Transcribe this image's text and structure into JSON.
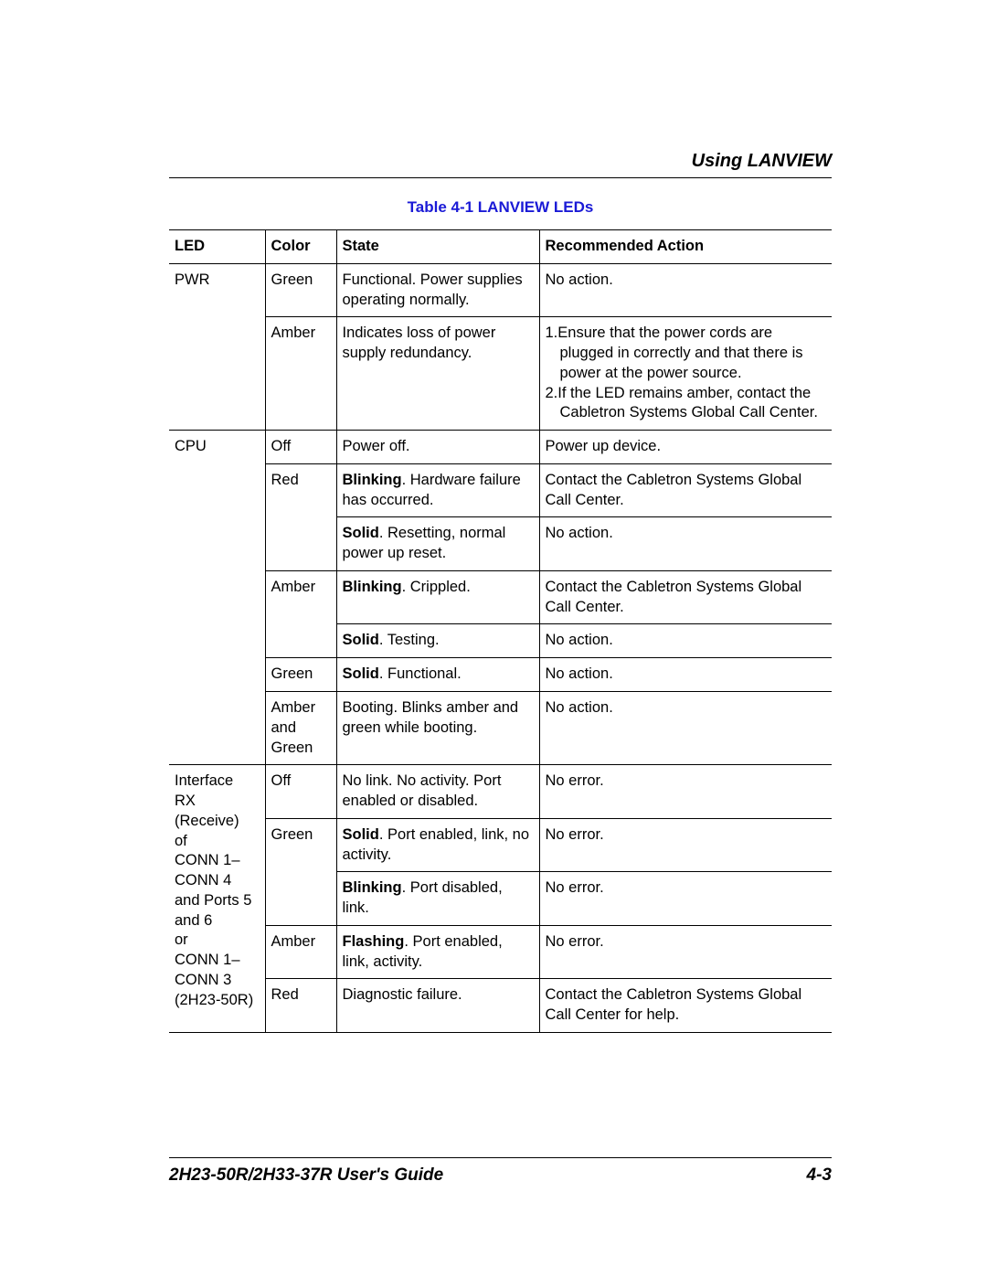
{
  "header": {
    "section_title": "Using LANVIEW"
  },
  "table": {
    "caption": "Table 4-1    LANVIEW LEDs",
    "columns": [
      "LED",
      "Color",
      "State",
      "Recommended Action"
    ],
    "rows": {
      "pwr": {
        "led": "PWR",
        "r1": {
          "color": "Green",
          "state": "Functional. Power supplies operating normally.",
          "action": "No action."
        },
        "r2": {
          "color": "Amber",
          "state": "Indicates loss of power supply redundancy.",
          "action1_num": "1.",
          "action1": "Ensure that the power cords are plugged in correctly and that there is power at the power source.",
          "action2_num": "2.",
          "action2": "If the LED remains amber, contact the Cabletron Systems Global Call Center."
        }
      },
      "cpu": {
        "led": "CPU",
        "r1": {
          "color": "Off",
          "state": "Power off.",
          "action": "Power up device."
        },
        "r2": {
          "color": "Red",
          "state_bold": "Blinking",
          "state_rest": ". Hardware failure has occurred.",
          "action": "Contact the Cabletron Systems Global Call Center."
        },
        "r3": {
          "state_bold": "Solid",
          "state_rest": ". Resetting, normal power up reset.",
          "action": "No action."
        },
        "r4": {
          "color": "Amber",
          "state_bold": "Blinking",
          "state_rest": ". Crippled.",
          "action": "Contact the Cabletron Systems Global Call Center."
        },
        "r5": {
          "state_bold": "Solid",
          "state_rest": ". Testing.",
          "action": "No action."
        },
        "r6": {
          "color": "Green",
          "state_bold": "Solid",
          "state_rest": ". Functional.",
          "action": "No action."
        },
        "r7": {
          "color": "Amber and Green",
          "state": "Booting. Blinks amber and green while booting.",
          "action": "No action."
        }
      },
      "rx": {
        "led": "Interface RX (Receive) of CONN 1– CONN 4 and Ports 5 and 6\nor\nCONN 1– CONN 3 (2H23-50R)",
        "led_l1": "Interface",
        "led_l2": "RX",
        "led_l3": "(Receive)",
        "led_l4": "of",
        "led_l5": "CONN 1–",
        "led_l6": "CONN 4",
        "led_l7": "and Ports 5",
        "led_l8": "and 6",
        "led_l9": "or",
        "led_l10": "CONN 1–",
        "led_l11": "CONN 3",
        "led_l12": "(2H23-50R)",
        "r1": {
          "color": "Off",
          "state": "No link. No activity. Port enabled or disabled.",
          "action": "No error."
        },
        "r2": {
          "color": "Green",
          "state_bold": "Solid",
          "state_rest": ". Port enabled, link, no activity.",
          "action": "No error."
        },
        "r3": {
          "state_bold": "Blinking",
          "state_rest": ". Port disabled, link.",
          "action": "No error."
        },
        "r4": {
          "color": "Amber",
          "state_bold": "Flashing",
          "state_rest": ". Port enabled, link, activity.",
          "action": "No error."
        },
        "r5": {
          "color": "Red",
          "state": "Diagnostic failure.",
          "action": "Contact the Cabletron Systems Global Call Center for help."
        }
      }
    }
  },
  "footer": {
    "guide": "2H23-50R/2H33-37R User's Guide",
    "page": "4-3"
  }
}
